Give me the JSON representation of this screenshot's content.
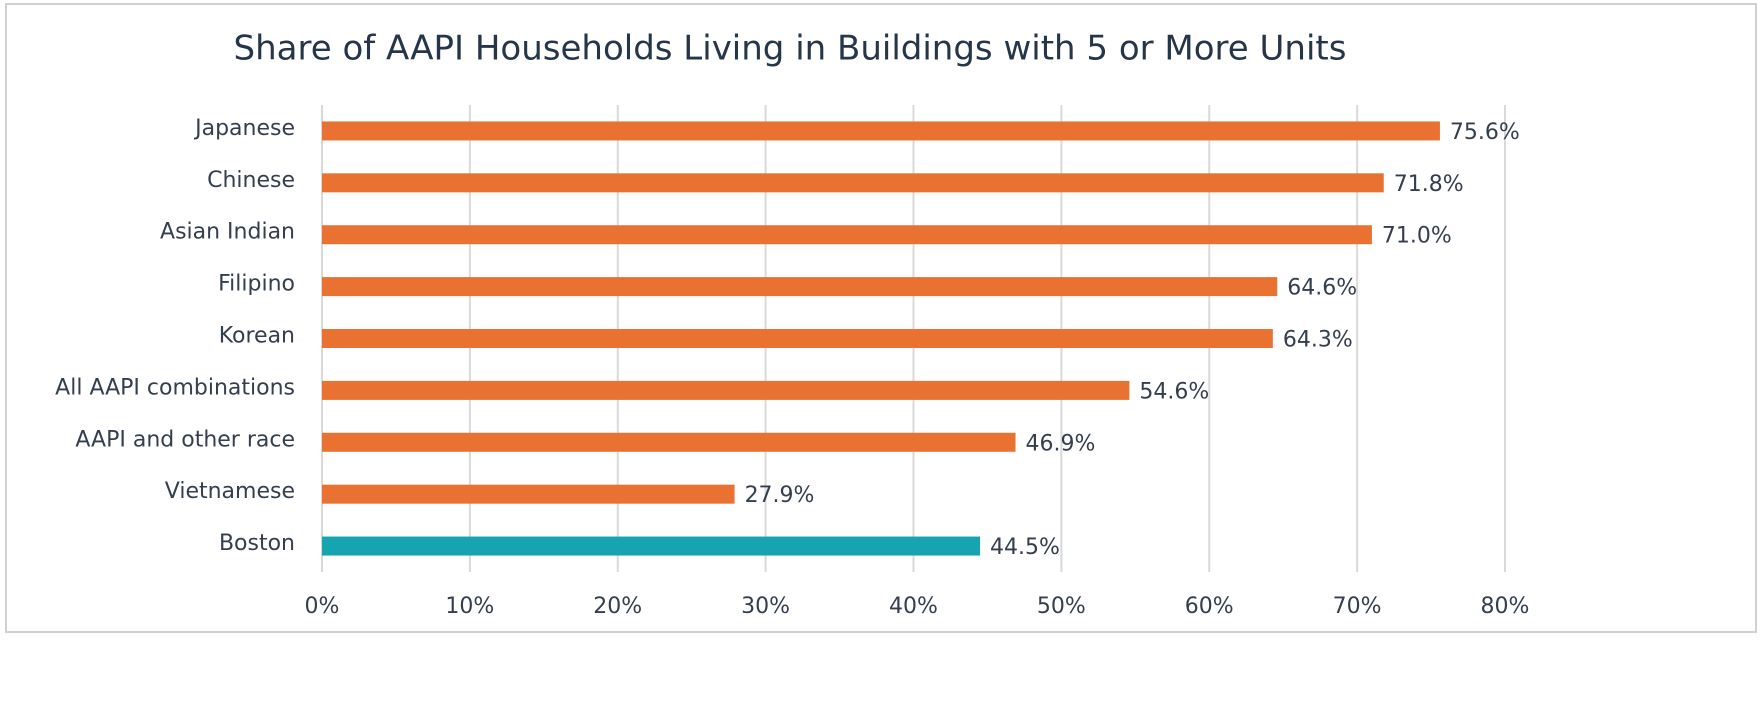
{
  "chart_data": {
    "type": "hbar",
    "title": "Share of AAPI Households Living in Buildings with 5 or More Units",
    "categories": [
      "Japanese",
      "Chinese",
      "Asian Indian",
      "Filipino",
      "Korean",
      "All AAPI combinations",
      "AAPI and other race",
      "Vietnamese",
      "Boston"
    ],
    "values": [
      75.6,
      71.8,
      71.0,
      64.6,
      64.3,
      54.6,
      46.9,
      27.9,
      44.5
    ],
    "value_labels": [
      "75.6%",
      "71.8%",
      "71.0%",
      "64.6%",
      "64.3%",
      "54.6%",
      "46.9%",
      "27.9%",
      "44.5%"
    ],
    "colors": [
      "#e97132",
      "#e97132",
      "#e97132",
      "#e97132",
      "#e97132",
      "#e97132",
      "#e97132",
      "#e97132",
      "#16a4b0"
    ],
    "xlim": [
      0,
      80
    ],
    "xticks": [
      {
        "value": 0,
        "label": "0%"
      },
      {
        "value": 10,
        "label": "10%"
      },
      {
        "value": 20,
        "label": "20%"
      },
      {
        "value": 30,
        "label": "30%"
      },
      {
        "value": 40,
        "label": "40%"
      },
      {
        "value": 50,
        "label": "50%"
      },
      {
        "value": 60,
        "label": "60%"
      },
      {
        "value": 70,
        "label": "70%"
      },
      {
        "value": 80,
        "label": "80%"
      }
    ],
    "grid": true
  }
}
